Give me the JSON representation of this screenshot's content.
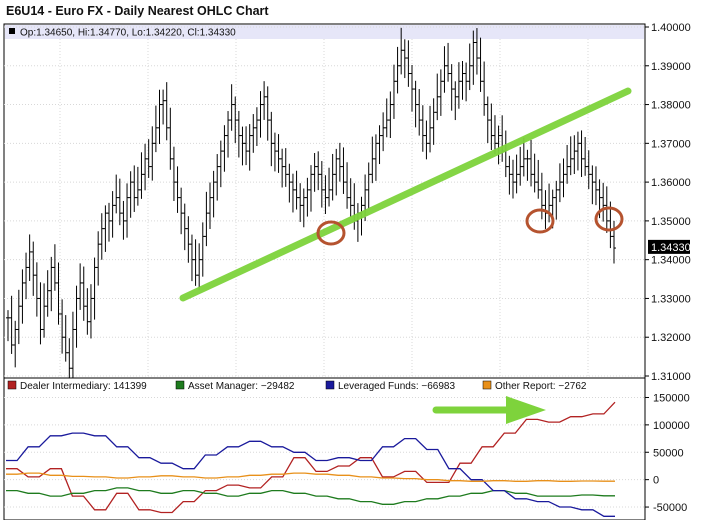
{
  "title": "E6U14 - Euro FX - Daily Nearest OHLC Chart",
  "chart_data": [
    {
      "type": "ohlc",
      "ohlc_header": "Op:1.34650, Hi:1.34770, Lo:1.34220, Cl:1.34330",
      "last_price_label": "1.34330",
      "last_close": 1.3433,
      "ylim": [
        1.31,
        1.4
      ],
      "y_ticks": [
        "1.40000",
        "1.39000",
        "1.38000",
        "1.37000",
        "1.36000",
        "1.35000",
        "1.34000",
        "1.33000",
        "1.32000",
        "1.31000"
      ],
      "y_tick_values": [
        1.4,
        1.39,
        1.38,
        1.37,
        1.36,
        1.35,
        1.34,
        1.33,
        1.32,
        1.31
      ],
      "grid": true,
      "closes": [
        1.325,
        1.318,
        1.322,
        1.328,
        1.334,
        1.338,
        1.342,
        1.336,
        1.33,
        1.322,
        1.328,
        1.332,
        1.338,
        1.334,
        1.326,
        1.32,
        1.316,
        1.312,
        1.322,
        1.33,
        1.334,
        1.328,
        1.324,
        1.33,
        1.338,
        1.344,
        1.348,
        1.352,
        1.35,
        1.354,
        1.356,
        1.352,
        1.35,
        1.356,
        1.36,
        1.356,
        1.358,
        1.362,
        1.366,
        1.364,
        1.37,
        1.374,
        1.38,
        1.381,
        1.374,
        1.366,
        1.36,
        1.356,
        1.352,
        1.348,
        1.344,
        1.34,
        1.336,
        1.34,
        1.346,
        1.352,
        1.356,
        1.36,
        1.364,
        1.368,
        1.372,
        1.376,
        1.38,
        1.376,
        1.372,
        1.37,
        1.368,
        1.372,
        1.374,
        1.376,
        1.38,
        1.382,
        1.376,
        1.37,
        1.368,
        1.366,
        1.364,
        1.362,
        1.36,
        1.358,
        1.356,
        1.354,
        1.356,
        1.358,
        1.362,
        1.364,
        1.362,
        1.358,
        1.356,
        1.358,
        1.362,
        1.366,
        1.364,
        1.36,
        1.356,
        1.354,
        1.35,
        1.352,
        1.354,
        1.358,
        1.362,
        1.366,
        1.37,
        1.372,
        1.374,
        1.376,
        1.38,
        1.386,
        1.39,
        1.394,
        1.392,
        1.388,
        1.384,
        1.38,
        1.376,
        1.372,
        1.37,
        1.374,
        1.378,
        1.382,
        1.386,
        1.39,
        1.388,
        1.384,
        1.382,
        1.386,
        1.388,
        1.386,
        1.39,
        1.396,
        1.392,
        1.386,
        1.38,
        1.376,
        1.372,
        1.37,
        1.372,
        1.368,
        1.364,
        1.362,
        1.36,
        1.362,
        1.364,
        1.366,
        1.366,
        1.362,
        1.36,
        1.358,
        1.354,
        1.352,
        1.354,
        1.356,
        1.358,
        1.36,
        1.362,
        1.364,
        1.366,
        1.368,
        1.37,
        1.366,
        1.364,
        1.362,
        1.36,
        1.358,
        1.356,
        1.354,
        1.35,
        1.346,
        1.343
      ]
    },
    {
      "type": "line",
      "legend": [
        {
          "name": "Dealer Intermediary: 141399",
          "color": "#b22222"
        },
        {
          "name": "Asset Manager: −29482",
          "color": "#1e7b1e"
        },
        {
          "name": "Leveraged Funds: −66983",
          "color": "#1a1a9c"
        },
        {
          "name": "Other Report: −2762",
          "color": "#e8901a"
        }
      ],
      "ylim": [
        -70000,
        160000
      ],
      "y_ticks": [
        "150000",
        "100000",
        "50000",
        "0",
        "-50000"
      ],
      "y_tick_values": [
        150000,
        100000,
        50000,
        0,
        -50000
      ],
      "grid": true,
      "series": [
        {
          "name": "Dealer Intermediary: 141399",
          "color": "#b22222",
          "values": [
            20000,
            20000,
            5000,
            5000,
            20000,
            20000,
            -30000,
            -30000,
            -55000,
            -55000,
            -25000,
            -25000,
            -55000,
            -55000,
            -60000,
            -60000,
            -40000,
            -40000,
            -20000,
            -20000,
            -10000,
            -10000,
            -15000,
            -15000,
            5000,
            5000,
            40000,
            40000,
            15000,
            15000,
            25000,
            25000,
            40000,
            40000,
            5000,
            5000,
            15000,
            15000,
            -5000,
            -5000,
            -5000,
            30000,
            30000,
            60000,
            60000,
            85000,
            85000,
            110000,
            110000,
            105000,
            105000,
            115000,
            115000,
            120000,
            120000,
            141399
          ]
        },
        {
          "name": "Asset Manager: −29482",
          "color": "#1e7b1e",
          "values": [
            -20000,
            -20000,
            -25000,
            -25000,
            -30000,
            -30000,
            -25000,
            -25000,
            -20000,
            -20000,
            -15000,
            -15000,
            -20000,
            -20000,
            -25000,
            -25000,
            -20000,
            -20000,
            -25000,
            -25000,
            -30000,
            -30000,
            -25000,
            -25000,
            -20000,
            -20000,
            -25000,
            -25000,
            -30000,
            -30000,
            -35000,
            -35000,
            -40000,
            -40000,
            -45000,
            -45000,
            -40000,
            -40000,
            -35000,
            -35000,
            -30000,
            -30000,
            -25000,
            -25000,
            -20000,
            -20000,
            -25000,
            -25000,
            -30000,
            -30000,
            -30000,
            -30000,
            -28000,
            -28000,
            -29482,
            -29482
          ]
        },
        {
          "name": "Leveraged Funds: −66983",
          "color": "#1a1a9c",
          "values": [
            35000,
            35000,
            60000,
            60000,
            80000,
            80000,
            85000,
            85000,
            80000,
            80000,
            60000,
            60000,
            40000,
            40000,
            30000,
            30000,
            20000,
            20000,
            45000,
            45000,
            60000,
            60000,
            70000,
            70000,
            60000,
            60000,
            50000,
            50000,
            35000,
            35000,
            40000,
            40000,
            35000,
            35000,
            60000,
            60000,
            75000,
            75000,
            55000,
            55000,
            20000,
            20000,
            0,
            0,
            -20000,
            -20000,
            -35000,
            -35000,
            -40000,
            -40000,
            -50000,
            -50000,
            -55000,
            -55000,
            -66983,
            -66983
          ]
        },
        {
          "name": "Other Report: −2762",
          "color": "#e8901a",
          "values": [
            10000,
            10000,
            12000,
            12000,
            8000,
            8000,
            6000,
            6000,
            5000,
            5000,
            3000,
            3000,
            5000,
            5000,
            7000,
            7000,
            5000,
            5000,
            3000,
            3000,
            5000,
            5000,
            8000,
            8000,
            10000,
            10000,
            12000,
            12000,
            10000,
            10000,
            8000,
            8000,
            5000,
            5000,
            3000,
            3000,
            2000,
            2000,
            0,
            0,
            -2000,
            -2000,
            -3000,
            -3000,
            -2000,
            -2000,
            -3000,
            -3000,
            -2000,
            -2000,
            -3000,
            -3000,
            -2500,
            -2500,
            -2762,
            -2762
          ]
        }
      ]
    }
  ]
}
